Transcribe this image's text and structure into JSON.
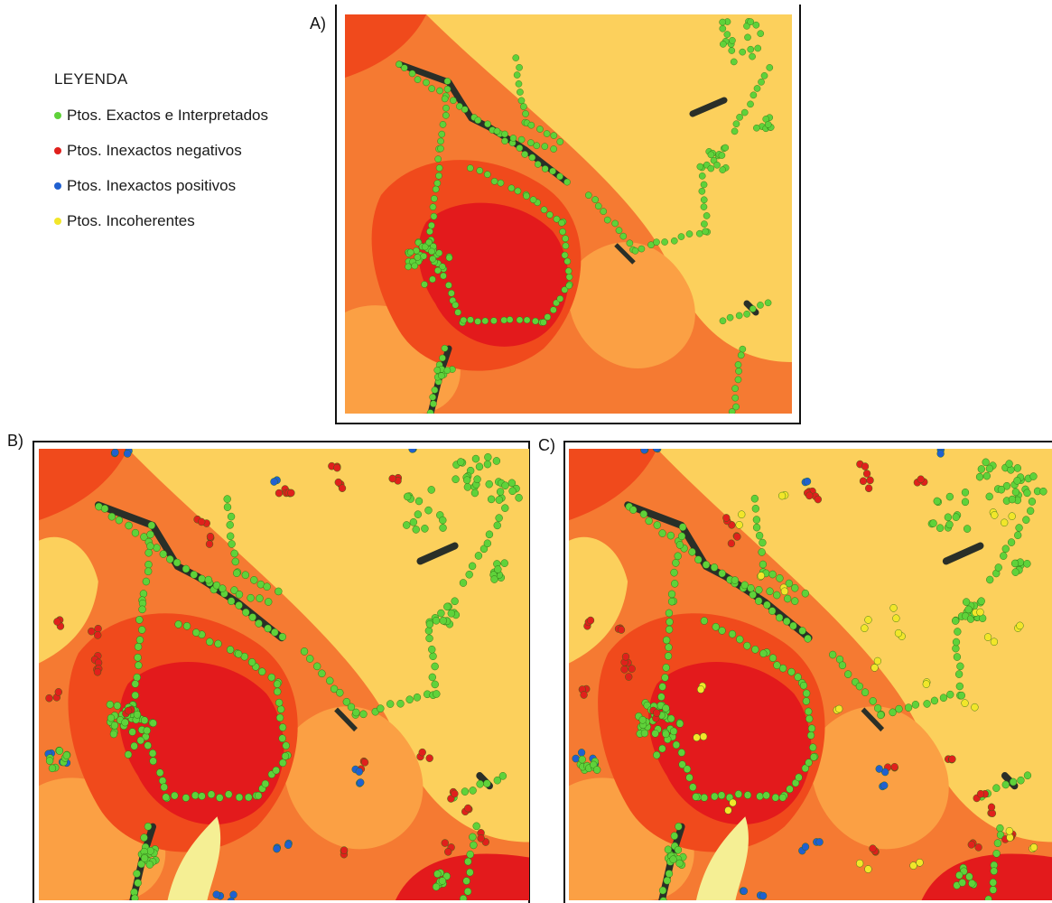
{
  "legend": {
    "title": "LEYENDA",
    "items": [
      {
        "label": "Ptos. Exactos e Interpretados",
        "color": "#5fd23a"
      },
      {
        "label": "Ptos. Inexactos negativos",
        "color": "#e0201c"
      },
      {
        "label": "Ptos. Inexactos positivos",
        "color": "#2060d0"
      },
      {
        "label": "Ptos. Incoherentes",
        "color": "#f2e62a"
      }
    ]
  },
  "panels": [
    {
      "label": "A)"
    },
    {
      "label": "B)"
    },
    {
      "label": "C)"
    }
  ],
  "colors": {
    "ramp": [
      "#e31a1c",
      "#f04a1c",
      "#f57a32",
      "#fba044",
      "#fcd05c",
      "#f5ef94",
      "#c4dbb0",
      "#94c4c0",
      "#6eb0c6",
      "#4898c8",
      "#2c84c4"
    ],
    "track": "#2a2f28"
  }
}
